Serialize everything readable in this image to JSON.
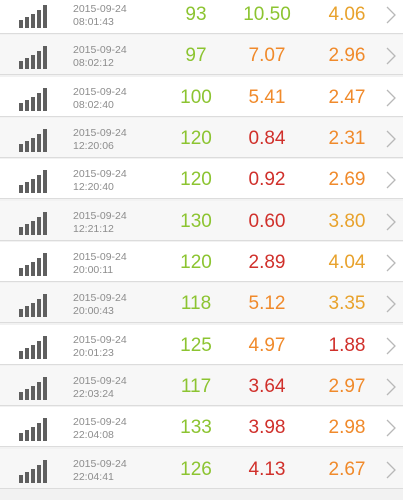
{
  "colors": {
    "green": "#8cc431",
    "orange": "#f08a2b",
    "red": "#d0302b",
    "gold": "#e8a22c",
    "bar_icon": "#5f5f5f",
    "timestamp": "#8d8d8d",
    "chevron": "#b8b8b8"
  },
  "icons": {
    "signal": "signal-bars-icon",
    "chevron": "chevron-right-icon"
  },
  "rows": [
    {
      "date": "2015-09-24",
      "time": "08:01:43",
      "hr": "93",
      "hr_color": "green",
      "v1": "10.50",
      "v1_color": "green",
      "v2": "4.06",
      "v2_color": "gold"
    },
    {
      "date": "2015-09-24",
      "time": "08:02:12",
      "hr": "97",
      "hr_color": "green",
      "v1": "7.07",
      "v1_color": "orange",
      "v2": "2.96",
      "v2_color": "orange"
    },
    {
      "date": "2015-09-24",
      "time": "08:02:40",
      "hr": "100",
      "hr_color": "green",
      "v1": "5.41",
      "v1_color": "orange",
      "v2": "2.47",
      "v2_color": "orange"
    },
    {
      "date": "2015-09-24",
      "time": "12:20:06",
      "hr": "120",
      "hr_color": "green",
      "v1": "0.84",
      "v1_color": "red",
      "v2": "2.31",
      "v2_color": "orange"
    },
    {
      "date": "2015-09-24",
      "time": "12:20:40",
      "hr": "120",
      "hr_color": "green",
      "v1": "0.92",
      "v1_color": "red",
      "v2": "2.69",
      "v2_color": "orange"
    },
    {
      "date": "2015-09-24",
      "time": "12:21:12",
      "hr": "130",
      "hr_color": "green",
      "v1": "0.60",
      "v1_color": "red",
      "v2": "3.80",
      "v2_color": "gold"
    },
    {
      "date": "2015-09-24",
      "time": "20:00:11",
      "hr": "120",
      "hr_color": "green",
      "v1": "2.89",
      "v1_color": "red",
      "v2": "4.04",
      "v2_color": "gold"
    },
    {
      "date": "2015-09-24",
      "time": "20:00:43",
      "hr": "118",
      "hr_color": "green",
      "v1": "5.12",
      "v1_color": "orange",
      "v2": "3.35",
      "v2_color": "gold"
    },
    {
      "date": "2015-09-24",
      "time": "20:01:23",
      "hr": "125",
      "hr_color": "green",
      "v1": "4.97",
      "v1_color": "orange",
      "v2": "1.88",
      "v2_color": "red"
    },
    {
      "date": "2015-09-24",
      "time": "22:03:24",
      "hr": "117",
      "hr_color": "green",
      "v1": "3.64",
      "v1_color": "red",
      "v2": "2.97",
      "v2_color": "orange"
    },
    {
      "date": "2015-09-24",
      "time": "22:04:08",
      "hr": "133",
      "hr_color": "green",
      "v1": "3.98",
      "v1_color": "red",
      "v2": "2.98",
      "v2_color": "orange"
    },
    {
      "date": "2015-09-24",
      "time": "22:04:41",
      "hr": "126",
      "hr_color": "green",
      "v1": "4.13",
      "v1_color": "red",
      "v2": "2.67",
      "v2_color": "orange"
    }
  ]
}
